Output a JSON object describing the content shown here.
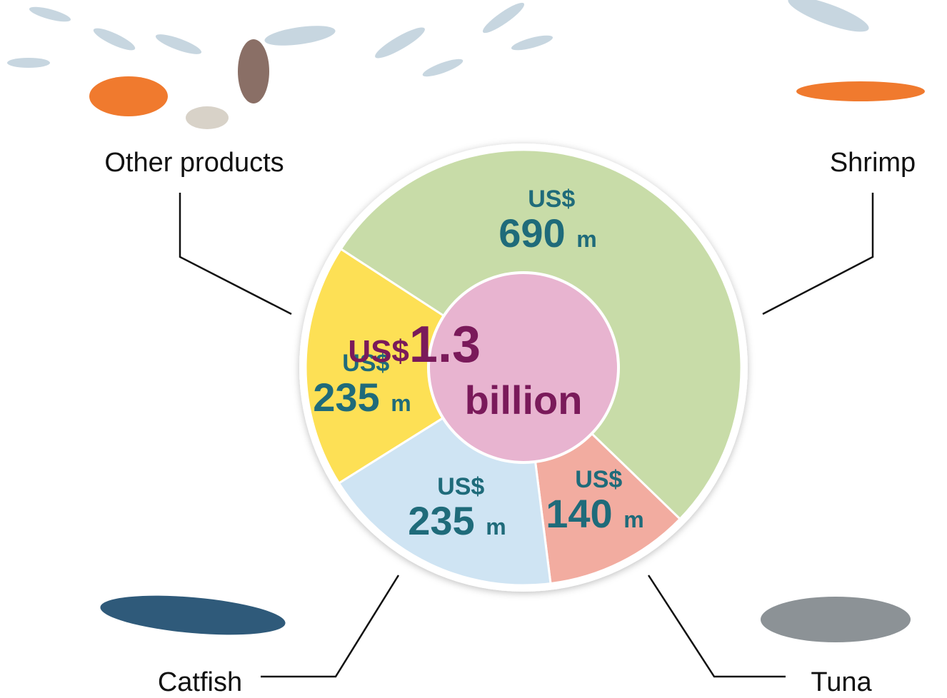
{
  "chart_data": {
    "type": "pie",
    "center_label": "US$1.3 billion",
    "categories": [
      "Shrimp",
      "Tuna",
      "Catfish",
      "Other products"
    ],
    "values": [
      690,
      140,
      235,
      235
    ],
    "value_labels": [
      "US$ 690 m",
      "US$ 140 m",
      "US$ 235 m",
      "US$ 235 m"
    ],
    "colors": [
      "#c8dca8",
      "#f2aca0",
      "#cfe4f3",
      "#fde055"
    ],
    "center_color": "#e8b4d0"
  }
}
